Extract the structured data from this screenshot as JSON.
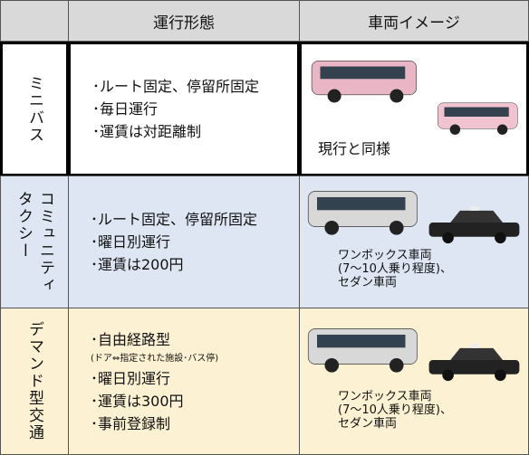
{
  "table": {
    "header": [
      "運行形態",
      "車両イメージ"
    ],
    "rows": [
      {
        "name": [
          "ミニバス"
        ],
        "features": [
          "･ルート固定、停留所固定",
          "･毎日運行",
          "･運賃は対距離制"
        ],
        "note": null,
        "features2": [],
        "caption": [
          "現行と同様"
        ]
      },
      {
        "name": [
          "コミュニティ",
          "タクシー"
        ],
        "features": [
          "･ルート固定、停留所固定",
          "･曜日別運行",
          "･運賃は200円"
        ],
        "note": null,
        "features2": [],
        "caption": [
          "ワンボックス車両",
          "(7～10人乗り程度)、",
          "セダン車両"
        ]
      },
      {
        "name": [
          "デマンド型交通"
        ],
        "features": [
          "･自由経路型"
        ],
        "note": "(ドア⇔指定された施設･バス停)",
        "features2": [
          "･曜日別運行",
          "･運賃は300円",
          "･事前登録制"
        ],
        "caption": [
          "ワンボックス車両",
          "(7～10人乗り程度)、",
          "セダン車両"
        ]
      }
    ]
  }
}
